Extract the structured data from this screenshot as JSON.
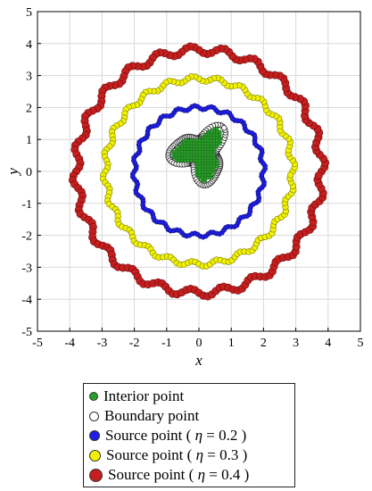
{
  "chart_data": {
    "type": "scatter",
    "title": "",
    "xlabel": "x",
    "ylabel": "y",
    "xlim": [
      -5,
      5
    ],
    "ylim": [
      -5,
      5
    ],
    "xticks": [
      "-5",
      "-4",
      "-3",
      "-2",
      "-1",
      "0",
      "1",
      "2",
      "3",
      "4",
      "5"
    ],
    "yticks": [
      "-5",
      "-4",
      "-3",
      "-2",
      "-1",
      "0",
      "1",
      "2",
      "3",
      "4",
      "5"
    ],
    "grid": true,
    "legend_position": "bottom-outside",
    "series": [
      {
        "name": "Source point (η = 0.4 )",
        "label_prefix": "Source point (",
        "label_eta": "η",
        "label_suffix": " = 0.4 )",
        "color": "#c41e1e",
        "shape": "circle",
        "center": [
          0,
          0
        ],
        "base_radius": 3.8,
        "wave_amplitude": 0.12,
        "wave_count": 24,
        "num_points": 180
      },
      {
        "name": "Source point (η = 0.3 )",
        "label_prefix": "Source point (",
        "label_eta": "η",
        "label_suffix": " = 0.3 )",
        "color": "#f2f200",
        "shape": "circle",
        "center": [
          0,
          0
        ],
        "base_radius": 2.9,
        "wave_amplitude": 0.08,
        "wave_count": 24,
        "num_points": 160
      },
      {
        "name": "Source point (η = 0.2 )",
        "label_prefix": "Source point (",
        "label_eta": "η",
        "label_suffix": " = 0.2 )",
        "color": "#1e1ee6",
        "shape": "circle",
        "center": [
          0,
          0
        ],
        "base_radius": 2.0,
        "wave_amplitude": 0.06,
        "wave_count": 24,
        "num_points": 150
      },
      {
        "name": "Boundary point",
        "color": "#ffffff",
        "shape": "circle",
        "center": [
          0.05,
          0.55
        ],
        "boundary_radius_formula": "0.75 + 0.25*cos(3t) + 0.1*cos(5t)",
        "num_points": 100
      },
      {
        "name": "Interior point",
        "color": "#28a028",
        "shape": "circle",
        "center": [
          0.05,
          0.55
        ],
        "grid_spacing": 0.09
      }
    ],
    "legend_order": [
      "Interior point",
      "Boundary point",
      "Source point (η = 0.2 )",
      "Source point (η = 0.3 )",
      "Source point (η = 0.4 )"
    ]
  }
}
